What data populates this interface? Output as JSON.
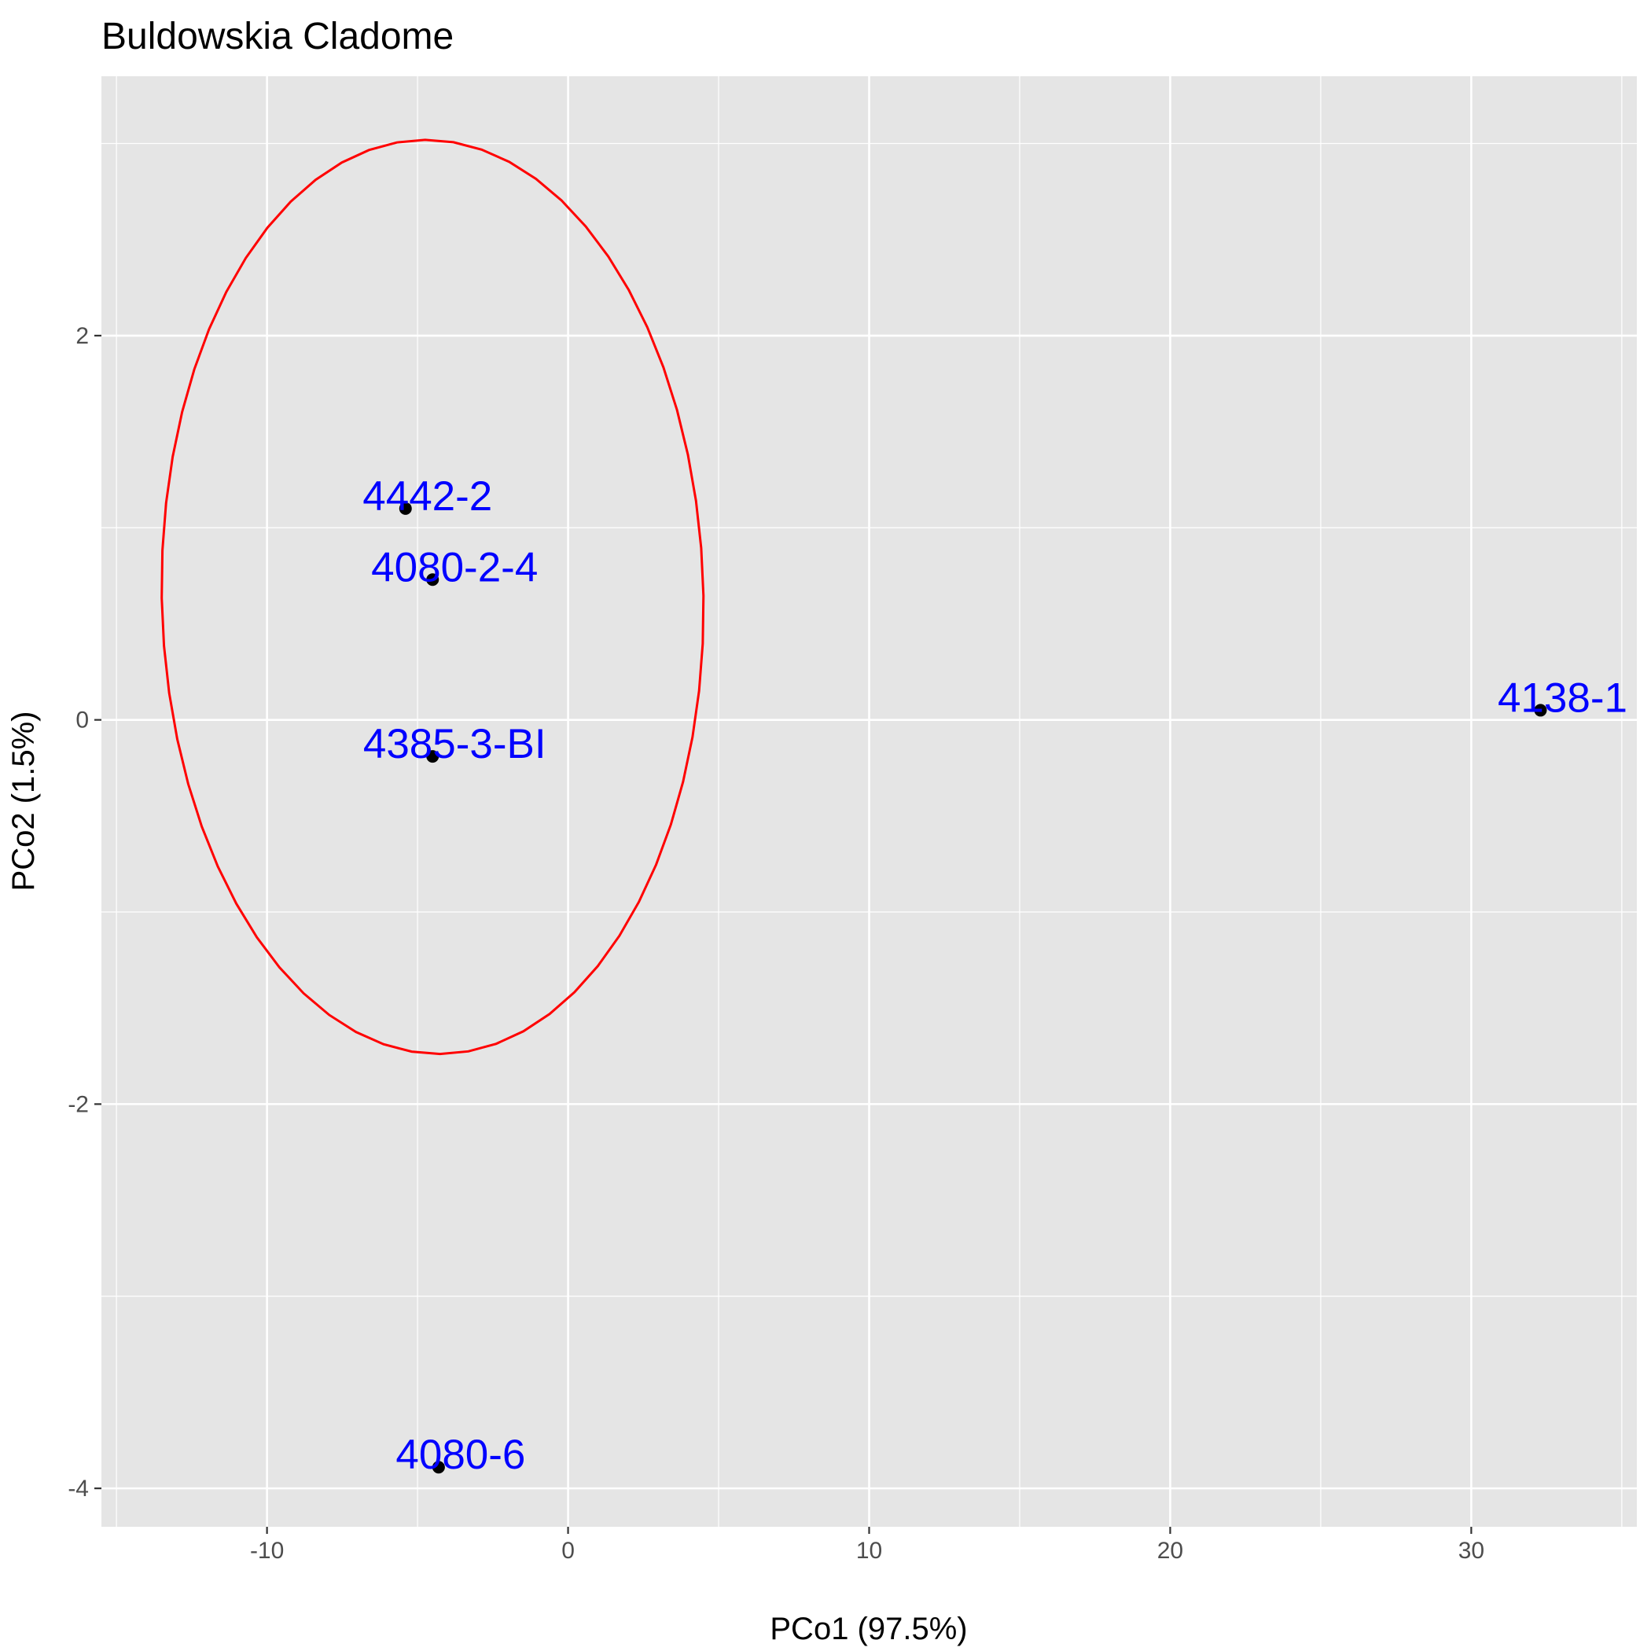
{
  "chart_data": {
    "type": "scatter",
    "title": "Buldowskia Cladome",
    "xlabel": "PCo1 (97.5%)",
    "ylabel": "PCo2 (1.5%)",
    "xlim": [
      -15.5,
      35.5
    ],
    "ylim": [
      -4.2,
      3.35
    ],
    "x_ticks": [
      -10,
      0,
      10,
      20,
      30
    ],
    "y_ticks": [
      -4,
      -2,
      0,
      2
    ],
    "grid": true,
    "legend": "none",
    "points": [
      {
        "label": "4442-2",
        "x": -5.4,
        "y": 1.1
      },
      {
        "label": "4080-2-4",
        "x": -4.5,
        "y": 0.73
      },
      {
        "label": "4385-3-BI",
        "x": -4.5,
        "y": -0.19
      },
      {
        "label": "4138-1",
        "x": 32.3,
        "y": 0.05
      },
      {
        "label": "4080-6",
        "x": -4.3,
        "y": -3.89
      }
    ],
    "ellipse": {
      "center_x": -4.5,
      "center_y": 0.64,
      "semi_axis_x": 9.0,
      "semi_axis_y": 2.38,
      "tilt": 0.026
    },
    "colors": {
      "panel_background": "#e5e5e5",
      "grid_line": "#ffffff",
      "ellipse": "#ff0000",
      "point": "#000000",
      "point_label": "#0000ff",
      "tick_label": "#4d4d4d",
      "tick_mark": "#333333"
    }
  }
}
